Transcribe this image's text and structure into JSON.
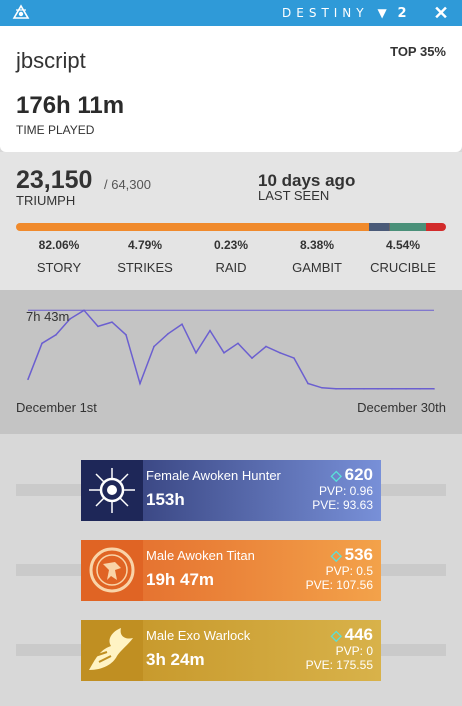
{
  "window": {
    "brand": "DESTINY",
    "brand_number": "2",
    "accent": "#2f9ad8"
  },
  "profile": {
    "username": "jbscript",
    "percentile": "TOP 35%",
    "time_played": "176h 11m",
    "time_played_label": "TIME PLAYED"
  },
  "stats": {
    "triumph": "23,150",
    "triumph_max": "/ 64,300",
    "triumph_label": "TRIUMPH",
    "last_seen": "10 days ago",
    "last_seen_label": "LAST SEEN",
    "breakdown": [
      {
        "name": "STORY",
        "percent": "82.06%",
        "value": 82.06,
        "color": "#f08a2c"
      },
      {
        "name": "STRIKES",
        "percent": "4.79%",
        "value": 4.79,
        "color": "#4a5a78"
      },
      {
        "name": "RAID",
        "percent": "0.23%",
        "value": 0.23,
        "color": "#666666"
      },
      {
        "name": "GAMBIT",
        "percent": "8.38%",
        "value": 8.38,
        "color": "#4a9079"
      },
      {
        "name": "CRUCIBLE",
        "percent": "4.54%",
        "value": 4.54,
        "color": "#d22b2b"
      }
    ]
  },
  "activity": {
    "peak_label": "7h 43m",
    "x_start": "December 1st",
    "x_end": "December 30th"
  },
  "chart_data": {
    "type": "line",
    "x": [
      1,
      2,
      3,
      4,
      5,
      6,
      7,
      8,
      9,
      10,
      11,
      12,
      13,
      14,
      15,
      16,
      17,
      18,
      19,
      20,
      21,
      22,
      23,
      24,
      25,
      26,
      27,
      28,
      29,
      30
    ],
    "values": [
      1.2,
      4.6,
      5.4,
      6.9,
      7.72,
      6.2,
      6.6,
      5.4,
      0.8,
      4.3,
      5.5,
      6.4,
      3.7,
      5.8,
      3.7,
      4.6,
      3.2,
      4.3,
      3.7,
      3.2,
      0.8,
      0.4,
      0.3,
      0.3,
      0.3,
      0.3,
      0.3,
      0.3,
      0.3,
      0.3
    ],
    "max_line": 7.72,
    "ylim": [
      0,
      8.5
    ],
    "line_color": "#6b5fd0"
  },
  "characters": [
    {
      "title": "Female Awoken Hunter",
      "time": "153h",
      "power": "620",
      "pvp": "PVP: 0.96",
      "pve": "PVE: 93.63",
      "bg": "#2c3670",
      "bg2": "#7890d8",
      "icon": "hunter-emblem-icon"
    },
    {
      "title": "Male Awoken Titan",
      "time": "19h 47m",
      "power": "536",
      "pvp": "PVP: 0.5",
      "pve": "PVE: 107.56",
      "bg": "#e2672a",
      "bg2": "#f3a24a",
      "icon": "titan-emblem-icon"
    },
    {
      "title": "Male Exo Warlock",
      "time": "3h 24m",
      "power": "446",
      "pvp": "PVP: 0",
      "pve": "PVE: 175.55",
      "bg": "#c49426",
      "bg2": "#d8b24a",
      "icon": "warlock-emblem-icon"
    }
  ]
}
